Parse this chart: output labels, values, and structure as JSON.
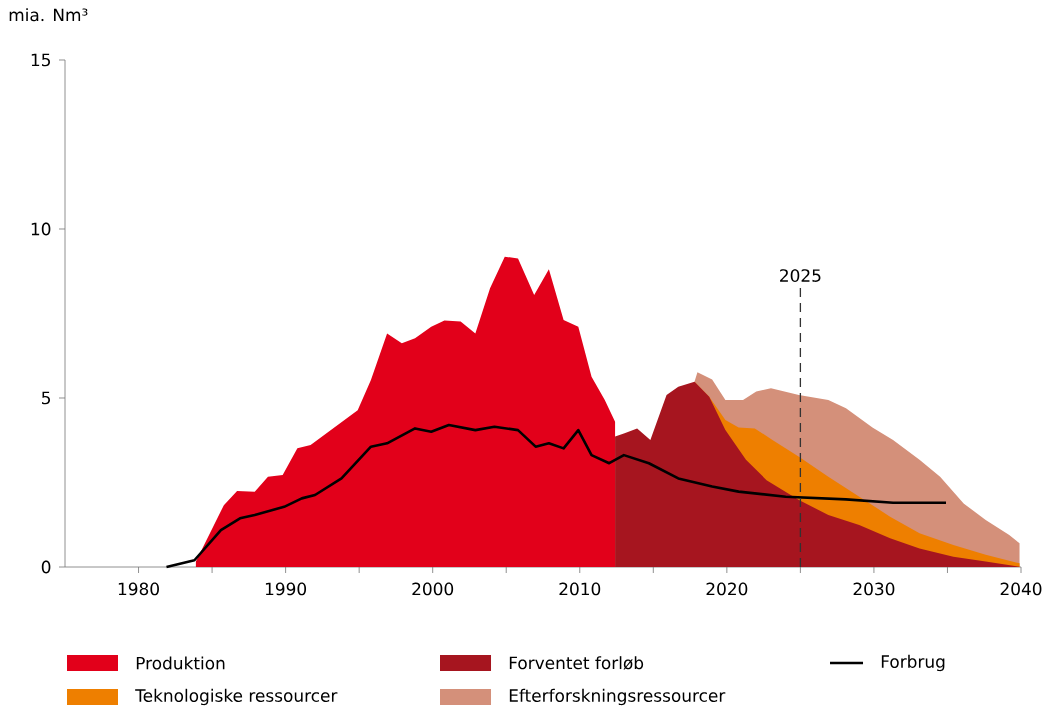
{
  "chart_data": {
    "type": "area",
    "ylabel": "mia. Nm³",
    "xlim": [
      1975,
      2040
    ],
    "ylim": [
      0,
      15
    ],
    "xticks": [
      1980,
      {
        "value": 1985,
        "label": null
      },
      1990,
      {
        "value": 1995,
        "label": null
      },
      2000,
      {
        "value": 2005,
        "label": null
      },
      2010,
      {
        "value": 2015,
        "label": null
      },
      2020,
      {
        "value": 2025,
        "label": null
      },
      2030,
      {
        "value": 2035,
        "label": null
      },
      2040
    ],
    "yticks": [
      0,
      5,
      10,
      15
    ],
    "legend": "bottom",
    "ref_lines": [
      {
        "axis": "x",
        "value": 2025,
        "label": "2025",
        "line_style": "dashed",
        "color": "#333333"
      }
    ],
    "series": [
      {
        "name": "Produktion",
        "color": "#e2001a",
        "x": [
          1983.9,
          1985.8,
          1986.7,
          1987.9,
          1988.8,
          1989.8,
          1990.8,
          1991.7,
          1994.9,
          1995.8,
          1996.9,
          1997.9,
          1998.8,
          1999.9,
          2000.8,
          2001.9,
          2002.9,
          2003.9,
          2004.9,
          2005.8,
          2006.9,
          2007.9,
          2008.9,
          2009.9,
          2010.8,
          2011.7,
          2012.4
        ],
        "values": [
          0.16,
          1.83,
          2.25,
          2.23,
          2.67,
          2.72,
          3.51,
          3.61,
          4.64,
          5.53,
          6.91,
          6.62,
          6.77,
          7.11,
          7.29,
          7.26,
          6.91,
          8.25,
          9.18,
          9.13,
          8.05,
          8.81,
          7.31,
          7.11,
          5.63,
          4.94,
          4.3
        ]
      },
      {
        "name": "Forventet forløb",
        "color": "#a6151f",
        "x": [
          2012.4,
          2013.0,
          2013.9,
          2014.8,
          2015.9,
          2016.7,
          2017.8,
          2018.8,
          2019.9,
          2021.3,
          2022.7,
          2024.9,
          2026.9,
          2029.0,
          2031.1,
          2033.1,
          2035.4,
          2037.6,
          2039.9
        ],
        "values": [
          3.86,
          3.95,
          4.1,
          3.76,
          5.09,
          5.33,
          5.48,
          5.04,
          4.05,
          3.17,
          2.57,
          1.98,
          1.54,
          1.24,
          0.85,
          0.55,
          0.3,
          0.16,
          0.01
        ]
      },
      {
        "name": "Forbrug",
        "type": "line",
        "color": "#000000",
        "x": [
          1981.9,
          1983.8,
          1985.6,
          1986.9,
          1987.9,
          1989.9,
          1991.1,
          1992.0,
          1993.8,
          1995.8,
          1996.9,
          1998.8,
          1999.9,
          2001.1,
          2002.9,
          2004.2,
          2005.8,
          2007.0,
          2007.9,
          2008.9,
          2009.9,
          2010.8,
          2012.0,
          2013.0,
          2014.7,
          2016.7,
          2019.0,
          2020.8,
          2024.0,
          2028.1,
          2031.3,
          2034.9
        ],
        "values": [
          0.0,
          0.2,
          1.09,
          1.44,
          1.54,
          1.78,
          2.03,
          2.13,
          2.62,
          3.56,
          3.66,
          4.1,
          4.0,
          4.2,
          4.05,
          4.15,
          4.05,
          3.56,
          3.66,
          3.51,
          4.05,
          3.31,
          3.07,
          3.31,
          3.07,
          2.62,
          2.38,
          2.23,
          2.08,
          2.0,
          1.9,
          1.9
        ]
      },
      {
        "name": "Teknologiske ressourcer",
        "color": "#ee7f00",
        "x": [
          2017.8,
          2018.8,
          2019.9,
          2020.8,
          2021.9,
          2023.1,
          2024.9,
          2026.9,
          2029.0,
          2031.1,
          2033.1,
          2035.4,
          2037.6,
          2039.9
        ],
        "values": [
          5.48,
          5.04,
          4.35,
          4.13,
          4.1,
          3.76,
          3.26,
          2.67,
          2.08,
          1.49,
          1.0,
          0.65,
          0.36,
          0.11
        ]
      },
      {
        "name": "Efterforskningsressourcer",
        "color": "#d4907a",
        "x": [
          2017.8,
          2018.0,
          2019.0,
          2019.9,
          2021.1,
          2022.0,
          2023.0,
          2024.9,
          2026.9,
          2028.1,
          2029.9,
          2031.3,
          2033.1,
          2034.5,
          2036.1,
          2037.6,
          2039.2,
          2039.9
        ],
        "values": [
          5.48,
          5.76,
          5.55,
          4.94,
          4.94,
          5.19,
          5.29,
          5.09,
          4.94,
          4.7,
          4.13,
          3.76,
          3.17,
          2.67,
          1.88,
          1.39,
          0.95,
          0.7
        ]
      }
    ]
  }
}
